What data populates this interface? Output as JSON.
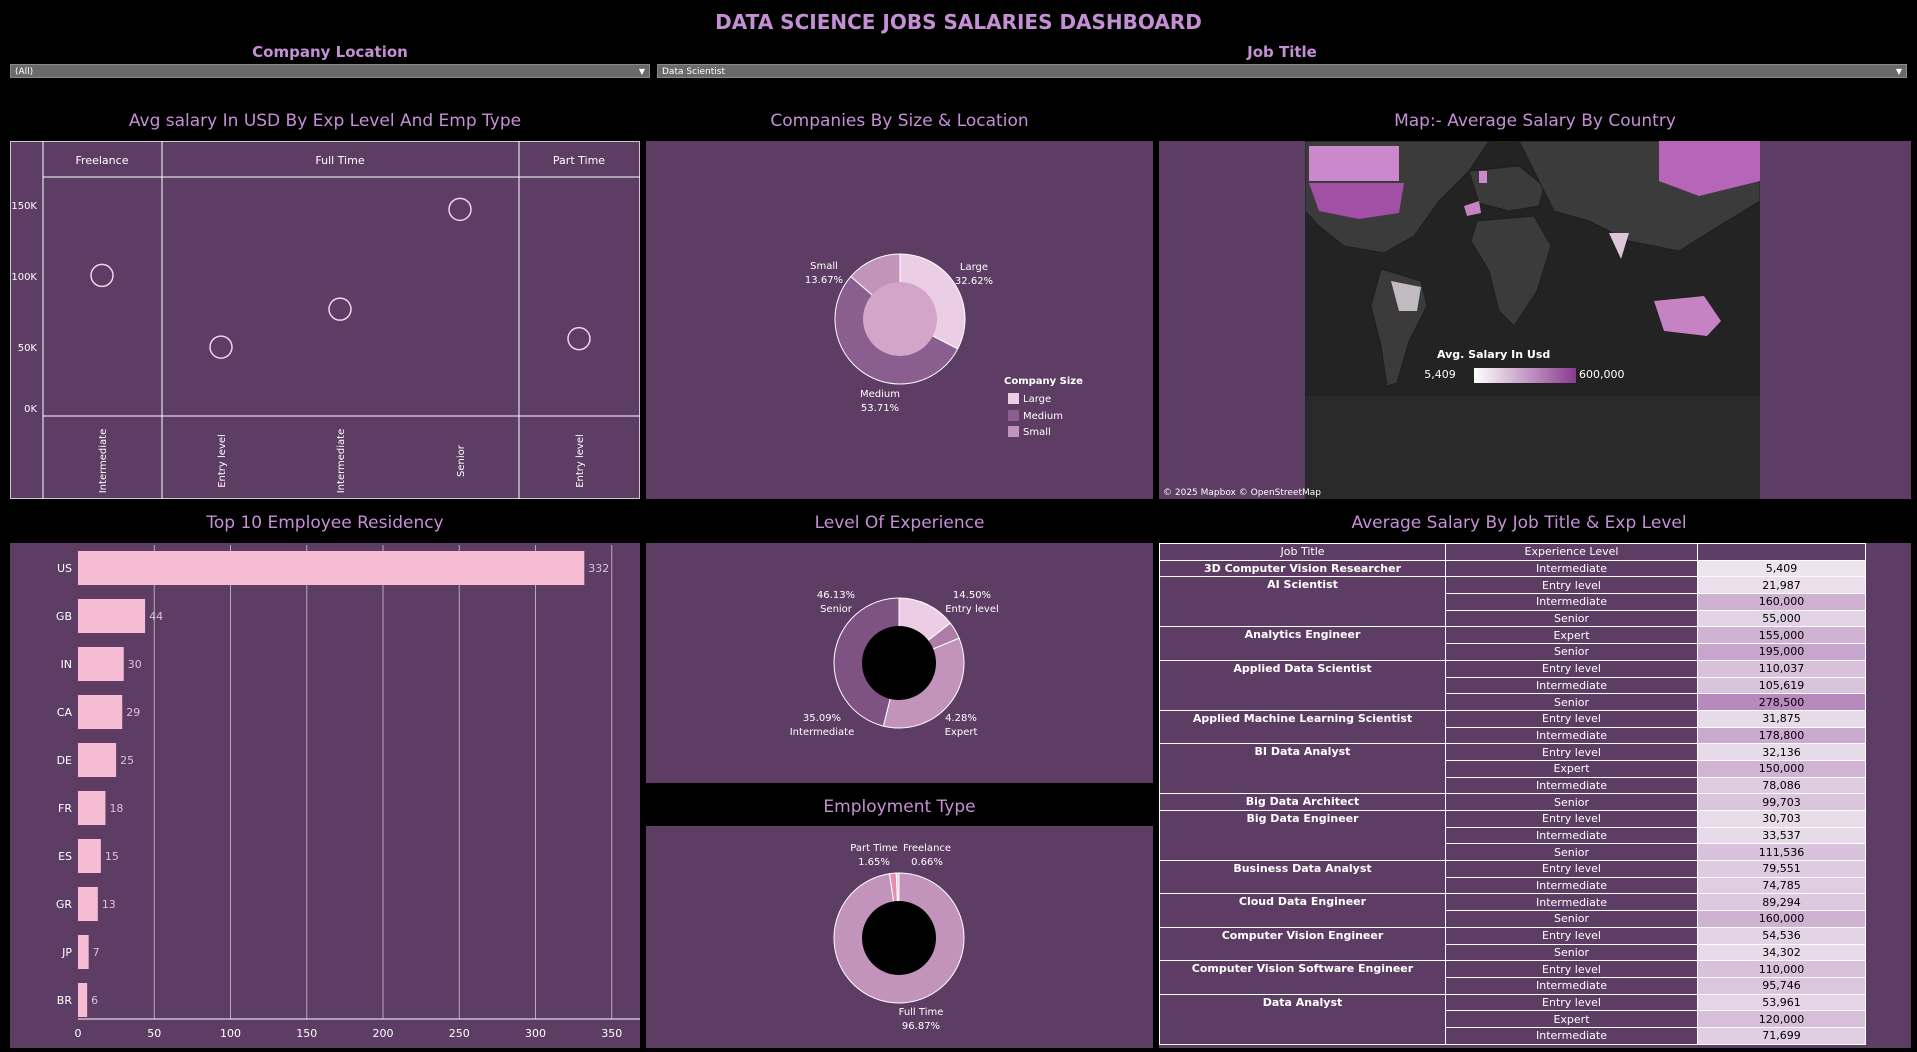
{
  "title": "DATA SCIENCE JOBS SALARIES DASHBOARD",
  "filters": {
    "company_location": {
      "label": "Company Location",
      "value": "(All)"
    },
    "job_title": {
      "label": "Job Title",
      "value": "Data Scientist"
    }
  },
  "panels": {
    "avg_salary": "Avg salary In USD By Exp Level And Emp Type",
    "companies": "Companies By Size & Location",
    "map": "Map:- Average Salary By Country",
    "residency": "Top 10 Employee Residency",
    "experience": "Level Of Experience",
    "employment": "Employment Type",
    "salary_table": "Average Salary By Job Title & Exp Level"
  },
  "map": {
    "legend_title": "Avg. Salary In Usd",
    "legend_min": "5,409",
    "legend_max": "600,000",
    "attribution": "© 2025 Mapbox  © OpenStreetMap"
  },
  "colors": {
    "panel_bg": "#5d3d63",
    "title": "#c58fd6",
    "bar": "#f6bcd4"
  },
  "chart_data": [
    {
      "type": "scatter",
      "title": "Avg salary In USD By Exp Level And Emp Type",
      "groups": [
        "Freelance",
        "Full Time",
        "Part Time"
      ],
      "y_ticks": [
        "150K",
        "100K",
        "50K",
        "0K"
      ],
      "ylim": [
        0,
        170000
      ],
      "points": [
        {
          "group": "Freelance",
          "x": "Intermediate",
          "y": 100000
        },
        {
          "group": "Full Time",
          "x": "Entry level",
          "y": 49000
        },
        {
          "group": "Full Time",
          "x": "Intermediate",
          "y": 76000
        },
        {
          "group": "Full Time",
          "x": "Senior",
          "y": 147000
        },
        {
          "group": "Part Time",
          "x": "Entry level",
          "y": 55000
        }
      ]
    },
    {
      "type": "pie",
      "title": "Companies By Size & Location",
      "legend_title": "Company Size",
      "slices": [
        {
          "name": "Large",
          "pct": "32.62%",
          "value": 32.62,
          "color": "#ebcde6"
        },
        {
          "name": "Medium",
          "pct": "53.71%",
          "value": 53.71,
          "color": "#8a5f8f"
        },
        {
          "name": "Small",
          "pct": "13.67%",
          "value": 13.67,
          "color": "#c293bb"
        }
      ]
    },
    {
      "type": "bar",
      "title": "Top 10 Employee Residency",
      "categories": [
        "US",
        "GB",
        "IN",
        "CA",
        "DE",
        "FR",
        "ES",
        "GR",
        "JP",
        "BR"
      ],
      "values": [
        332,
        44,
        30,
        29,
        25,
        18,
        15,
        13,
        7,
        6
      ],
      "x_ticks": [
        "0",
        "50",
        "100",
        "150",
        "200",
        "250",
        "300",
        "350"
      ],
      "xlim": [
        0,
        365
      ]
    },
    {
      "type": "pie",
      "title": "Level Of Experience",
      "slices": [
        {
          "name": "Entry level",
          "pct": "14.50%",
          "value": 14.5,
          "color": "#ebcde6"
        },
        {
          "name": "Expert",
          "pct": "4.28%",
          "value": 4.28,
          "color": "#ae7ca8"
        },
        {
          "name": "Intermediate",
          "pct": "35.09%",
          "value": 35.09,
          "color": "#c293bb"
        },
        {
          "name": "Senior",
          "pct": "46.13%",
          "value": 46.13,
          "color": "#7f5284"
        }
      ]
    },
    {
      "type": "pie",
      "title": "Employment Type",
      "slices": [
        {
          "name": "Full Time",
          "pct": "96.87%",
          "value": 96.87,
          "color": "#c293bb"
        },
        {
          "name": "Part Time",
          "pct": "1.65%",
          "value": 1.65,
          "color": "#e58fb0"
        },
        {
          "name": "Freelance",
          "pct": "0.66%",
          "value": 0.66,
          "color": "#ebcde6"
        }
      ]
    }
  ],
  "salary_table": {
    "headers": [
      "Job Title",
      "Experience Level",
      ""
    ],
    "groups": [
      {
        "title": "3D Computer Vision Researcher",
        "rows": [
          [
            "Intermediate",
            "5,409"
          ]
        ]
      },
      {
        "title": "AI Scientist",
        "rows": [
          [
            "Entry level",
            "21,987"
          ],
          [
            "Intermediate",
            "160,000"
          ],
          [
            "Senior",
            "55,000"
          ]
        ]
      },
      {
        "title": "Analytics Engineer",
        "rows": [
          [
            "Expert",
            "155,000"
          ],
          [
            "Senior",
            "195,000"
          ]
        ]
      },
      {
        "title": "Applied Data Scientist",
        "rows": [
          [
            "Entry level",
            "110,037"
          ],
          [
            "Intermediate",
            "105,619"
          ],
          [
            "Senior",
            "278,500"
          ]
        ]
      },
      {
        "title": "Applied Machine Learning Scientist",
        "rows": [
          [
            "Entry level",
            "31,875"
          ],
          [
            "Intermediate",
            "178,800"
          ]
        ]
      },
      {
        "title": "BI Data Analyst",
        "rows": [
          [
            "Entry level",
            "32,136"
          ],
          [
            "Expert",
            "150,000"
          ],
          [
            "Intermediate",
            "78,086"
          ]
        ]
      },
      {
        "title": "Big Data Architect",
        "rows": [
          [
            "Senior",
            "99,703"
          ]
        ]
      },
      {
        "title": "Big Data Engineer",
        "rows": [
          [
            "Entry level",
            "30,703"
          ],
          [
            "Intermediate",
            "33,537"
          ],
          [
            "Senior",
            "111,536"
          ]
        ]
      },
      {
        "title": "Business Data Analyst",
        "rows": [
          [
            "Entry level",
            "79,551"
          ],
          [
            "Intermediate",
            "74,785"
          ]
        ]
      },
      {
        "title": "Cloud Data Engineer",
        "rows": [
          [
            "Intermediate",
            "89,294"
          ],
          [
            "Senior",
            "160,000"
          ]
        ]
      },
      {
        "title": "Computer Vision Engineer",
        "rows": [
          [
            "Entry level",
            "54,536"
          ],
          [
            "Senior",
            "34,302"
          ]
        ]
      },
      {
        "title": "Computer Vision Software Engineer",
        "rows": [
          [
            "Entry level",
            "110,000"
          ],
          [
            "Intermediate",
            "95,746"
          ]
        ]
      },
      {
        "title": "Data Analyst",
        "rows": [
          [
            "Entry level",
            "53,961"
          ],
          [
            "Expert",
            "120,000"
          ],
          [
            "Intermediate",
            "71,699"
          ]
        ]
      }
    ]
  }
}
